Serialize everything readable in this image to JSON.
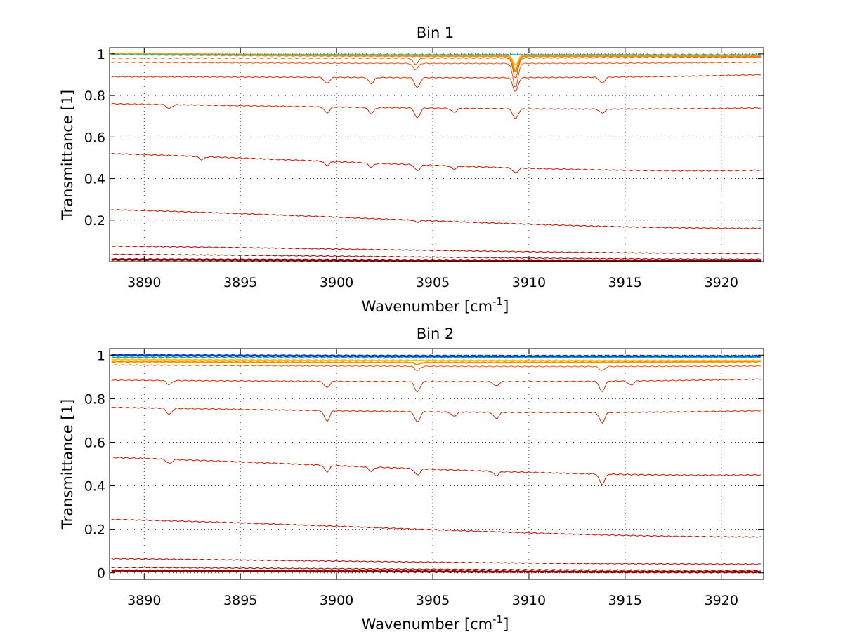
{
  "chart_data": [
    {
      "type": "line",
      "title": "Bin 1",
      "xlabel": "Wavenumber [cm",
      "xlabel_sup": "-1",
      "xlabel_tail": "]",
      "ylabel": "Transmittance [1]",
      "xlim": [
        3888.2,
        3922.2
      ],
      "ylim": [
        0,
        1.03
      ],
      "xticks": [
        3890,
        3895,
        3900,
        3905,
        3910,
        3915,
        3920
      ],
      "yticks": [
        0.2,
        0.4,
        0.6,
        0.8,
        1
      ],
      "ytick_labels": [
        "0.2",
        "0.4",
        "0.6",
        "0.8",
        "1"
      ],
      "grid": true,
      "series": [
        {
          "color": "#ff8c00",
          "width": 3.2,
          "start": [
            1.0,
            0.99
          ],
          "end": [
            0.99,
            0.99
          ],
          "spikes": [
            [
              3909.3,
              0.08
            ]
          ]
        },
        {
          "color": "#ffc400",
          "width": 1.5,
          "start": [
            0.998,
            0.995
          ],
          "end": [
            0.995,
            0.995
          ],
          "spikes": [
            [
              3909.3,
              0.05
            ]
          ]
        },
        {
          "color": "#00b4c8",
          "width": 1,
          "start": [
            0.997,
            0.998
          ],
          "end": [
            0.997,
            0.998
          ],
          "spikes": []
        },
        {
          "color": "#e05a10",
          "width": 1,
          "start": [
            0.98,
            0.98
          ],
          "end": [
            0.985,
            0.978
          ],
          "spikes": [
            [
              3904.1,
              0.03
            ],
            [
              3909.3,
              0.1
            ]
          ]
        },
        {
          "color": "#e05a10",
          "width": 1,
          "start": [
            0.96,
            0.955
          ],
          "end": [
            0.96,
            0.95
          ],
          "spikes": [
            [
              3904.1,
              0.03
            ],
            [
              3909.3,
              0.12
            ]
          ]
        },
        {
          "color": "#cc3300",
          "width": 1,
          "start": [
            0.89,
            0.89
          ],
          "end": [
            0.9,
            0.875
          ],
          "spikes": [
            [
              3899.5,
              0.03
            ],
            [
              3901.8,
              0.03
            ],
            [
              3904.2,
              0.05
            ],
            [
              3909.3,
              0.07
            ],
            [
              3913.8,
              0.03
            ]
          ]
        },
        {
          "color": "#cc2a00",
          "width": 1,
          "start": [
            0.76,
            0.745
          ],
          "end": [
            0.74,
            0.725
          ],
          "spikes": [
            [
              3891.3,
              0.02
            ],
            [
              3899.5,
              0.03
            ],
            [
              3901.8,
              0.03
            ],
            [
              3904.2,
              0.05
            ],
            [
              3906.1,
              0.02
            ],
            [
              3909.3,
              0.05
            ],
            [
              3913.8,
              0.02
            ]
          ]
        },
        {
          "color": "#c01a00",
          "width": 1,
          "start": [
            0.52,
            0.49
          ],
          "end": [
            0.44,
            0.425
          ],
          "spikes": [
            [
              3893.0,
              0.015
            ],
            [
              3899.5,
              0.02
            ],
            [
              3901.8,
              0.02
            ],
            [
              3904.2,
              0.03
            ],
            [
              3906.1,
              0.015
            ],
            [
              3909.3,
              0.025
            ]
          ]
        },
        {
          "color": "#b81000",
          "width": 1,
          "start": [
            0.25,
            0.225
          ],
          "end": [
            0.16,
            0.16
          ],
          "spikes": [
            [
              3904.2,
              0.01
            ]
          ]
        },
        {
          "color": "#a80800",
          "width": 1,
          "start": [
            0.075,
            0.065
          ],
          "end": [
            0.04,
            0.04
          ],
          "spikes": []
        },
        {
          "color": "#900000",
          "width": 1,
          "start": [
            0.035,
            0.03
          ],
          "end": [
            0.012,
            0.012
          ],
          "spikes": []
        },
        {
          "color": "#900000",
          "width": 3,
          "start": [
            0.01,
            0.008
          ],
          "end": [
            0.004,
            0.004
          ],
          "spikes": []
        }
      ]
    },
    {
      "type": "line",
      "title": "Bin 2",
      "xlabel": "Wavenumber [cm",
      "xlabel_sup": "-1",
      "xlabel_tail": "]",
      "ylabel": "Transmittance [1]",
      "xlim": [
        3888.2,
        3922.2
      ],
      "ylim": [
        -0.03,
        1.03
      ],
      "xticks": [
        3890,
        3895,
        3900,
        3905,
        3910,
        3915,
        3920
      ],
      "yticks": [
        0,
        0.2,
        0.4,
        0.6,
        0.8,
        1
      ],
      "ytick_labels": [
        "0",
        "0.2",
        "0.4",
        "0.6",
        "0.8",
        "1"
      ],
      "grid": true,
      "series": [
        {
          "color": "#0040c0",
          "width": 3,
          "start": [
            1.0,
            0.995
          ],
          "end": [
            0.995,
            0.995
          ],
          "spikes": []
        },
        {
          "color": "#00a0d8",
          "width": 1.5,
          "start": [
            0.99,
            0.985
          ],
          "end": [
            0.99,
            0.99
          ],
          "spikes": []
        },
        {
          "color": "#ffc400",
          "width": 2,
          "start": [
            0.98,
            0.975
          ],
          "end": [
            0.975,
            0.975
          ],
          "spikes": []
        },
        {
          "color": "#ff8c00",
          "width": 2,
          "start": [
            0.97,
            0.965
          ],
          "end": [
            0.97,
            0.965
          ],
          "spikes": [
            [
              3904.2,
              0.01
            ]
          ]
        },
        {
          "color": "#e05a10",
          "width": 1,
          "start": [
            0.955,
            0.95
          ],
          "end": [
            0.95,
            0.945
          ],
          "spikes": [
            [
              3904.2,
              0.02
            ],
            [
              3913.8,
              0.02
            ]
          ]
        },
        {
          "color": "#cc3300",
          "width": 1,
          "start": [
            0.885,
            0.88
          ],
          "end": [
            0.89,
            0.87
          ],
          "spikes": [
            [
              3891.3,
              0.02
            ],
            [
              3899.5,
              0.03
            ],
            [
              3904.2,
              0.05
            ],
            [
              3908.3,
              0.02
            ],
            [
              3913.8,
              0.05
            ],
            [
              3915.3,
              0.02
            ]
          ]
        },
        {
          "color": "#cc2a00",
          "width": 1,
          "start": [
            0.76,
            0.745
          ],
          "end": [
            0.745,
            0.725
          ],
          "spikes": [
            [
              3891.3,
              0.03
            ],
            [
              3899.5,
              0.05
            ],
            [
              3904.2,
              0.05
            ],
            [
              3906.1,
              0.02
            ],
            [
              3908.3,
              0.03
            ],
            [
              3913.8,
              0.05
            ]
          ]
        },
        {
          "color": "#c01a00",
          "width": 1,
          "start": [
            0.53,
            0.5
          ],
          "end": [
            0.45,
            0.44
          ],
          "spikes": [
            [
              3891.3,
              0.02
            ],
            [
              3899.5,
              0.03
            ],
            [
              3901.8,
              0.02
            ],
            [
              3904.2,
              0.03
            ],
            [
              3908.3,
              0.02
            ],
            [
              3913.8,
              0.05
            ]
          ]
        },
        {
          "color": "#b81000",
          "width": 1,
          "start": [
            0.245,
            0.225
          ],
          "end": [
            0.165,
            0.165
          ],
          "spikes": []
        },
        {
          "color": "#a80800",
          "width": 1,
          "start": [
            0.065,
            0.055
          ],
          "end": [
            0.04,
            0.04
          ],
          "spikes": []
        },
        {
          "color": "#900000",
          "width": 1,
          "start": [
            0.025,
            0.02
          ],
          "end": [
            0.012,
            0.012
          ],
          "spikes": []
        },
        {
          "color": "#900000",
          "width": 3,
          "start": [
            0.01,
            0.008
          ],
          "end": [
            0.004,
            0.004
          ],
          "spikes": []
        }
      ]
    }
  ]
}
